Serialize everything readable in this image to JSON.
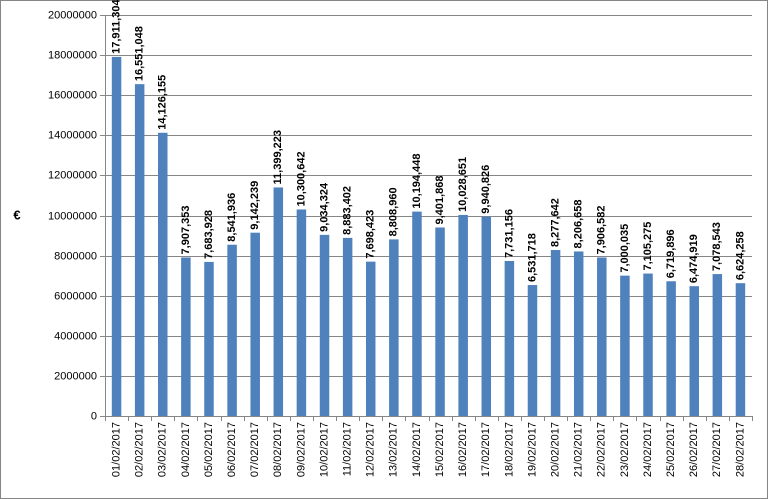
{
  "chart_data": {
    "type": "bar",
    "title": "",
    "xlabel": "",
    "ylabel": "€",
    "ylim": [
      0,
      20000000
    ],
    "y_ticks": [
      "0",
      "2000000",
      "4000000",
      "6000000",
      "8000000",
      "10000000",
      "12000000",
      "14000000",
      "16000000",
      "18000000",
      "20000000"
    ],
    "grid": true,
    "bar_color": "#4f81bd",
    "categories": [
      "01/02/2017",
      "02/02/2017",
      "03/02/2017",
      "04/02/2017",
      "05/02/2017",
      "06/02/2017",
      "07/02/2017",
      "08/02/2017",
      "09/02/2017",
      "10/02/2017",
      "11/02/2017",
      "12/02/2017",
      "13/02/2017",
      "14/02/2017",
      "15/02/2017",
      "16/02/2017",
      "17/02/2017",
      "18/02/2017",
      "19/02/2017",
      "20/02/2017",
      "21/02/2017",
      "22/02/2017",
      "23/02/2017",
      "24/02/2017",
      "25/02/2017",
      "26/02/2017",
      "27/02/2017",
      "28/02/2017"
    ],
    "values": [
      17911304,
      16551048,
      14126155,
      7907353,
      7683928,
      8541936,
      9142239,
      11399223,
      10300642,
      9034324,
      8883402,
      7698423,
      8808960,
      10194448,
      9401868,
      10028651,
      9940826,
      7731156,
      6531718,
      8277642,
      8206658,
      7906582,
      7000035,
      7105275,
      6719896,
      6474919,
      7078543,
      6624258
    ],
    "data_labels": [
      "17,911,304",
      "16,551,048",
      "14,126,155",
      "7,907,353",
      "7,683,928",
      "8,541,936",
      "9,142,239",
      "11,399,223",
      "10,300,642",
      "9,034,324",
      "8,883,402",
      "7,698,423",
      "8,808,960",
      "10,194,448",
      "9,401,868",
      "10,028,651",
      "9,940,826",
      "7,731,156",
      "6,531,718",
      "8,277,642",
      "8,206,658",
      "7,906,582",
      "7,000,035",
      "7,105,275",
      "6,719,896",
      "6,474,919",
      "7,078,543",
      "6,624,258"
    ]
  }
}
